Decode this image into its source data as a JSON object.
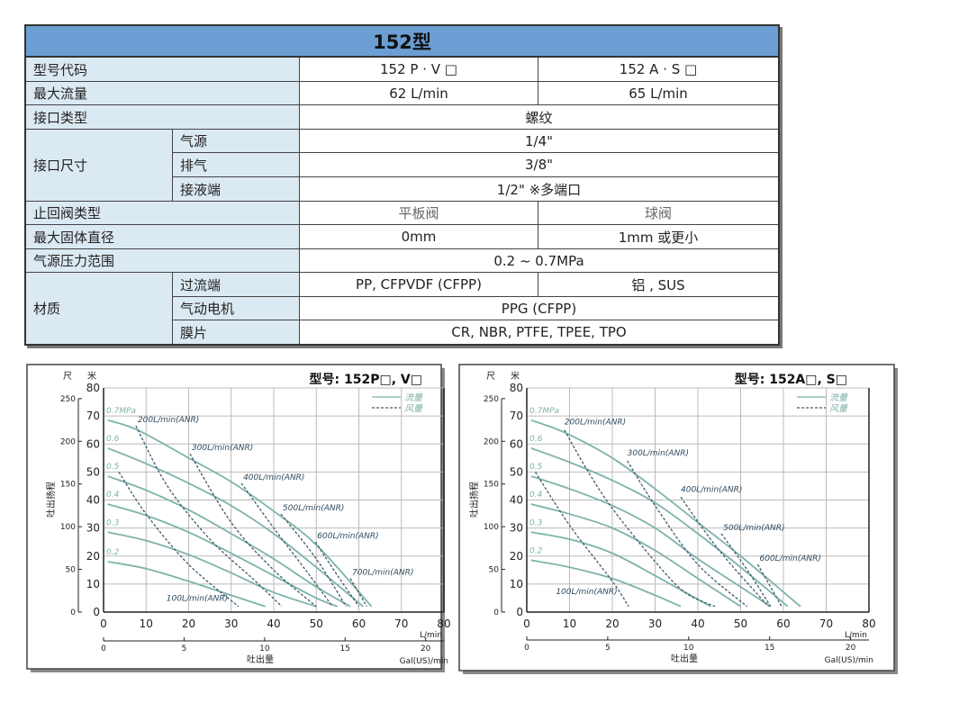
{
  "table": {
    "title": "152型",
    "rows": {
      "model_code": {
        "label": "型号代码",
        "v1": "152 P · V □",
        "v2": "152 A · S □"
      },
      "max_flow": {
        "label": "最大流量",
        "v1": "62 L/min",
        "v2": "65 L/min"
      },
      "port_type": {
        "label": "接口类型",
        "v": "螺纹"
      },
      "port_size": {
        "label": "接口尺寸",
        "air": {
          "label": "气源",
          "v": "1/4\""
        },
        "exhaust": {
          "label": "排气",
          "v": "3/8\""
        },
        "liquid": {
          "label": "接液端",
          "v": "1/2\" ※多端口"
        }
      },
      "check_valve": {
        "label": "止回阀类型",
        "v1": "平板阀",
        "v2": "球阀"
      },
      "max_solid": {
        "label": "最大固体直径",
        "v1": "0mm",
        "v2": "1mm 或更小"
      },
      "air_pressure": {
        "label": "气源压力范围",
        "v": "0.2 ~ 0.7MPa"
      },
      "material": {
        "label": "材质",
        "wetted": {
          "label": "过流端",
          "v1": "PP, CFPVDF (CFPP)",
          "v2": "铝 , SUS"
        },
        "motor": {
          "label": "气动电机",
          "v": "PPG (CFPP)"
        },
        "diaphragm": {
          "label": "膜片",
          "v": "CR, NBR, PTFE, TPEE, TPO"
        }
      }
    }
  },
  "chart_data": [
    {
      "type": "line",
      "title": "型号: 152P□, V□",
      "ylabel": "吐出扬程",
      "y_units": [
        "尺",
        "米"
      ],
      "xlabel": "吐出量",
      "x_unit": "L/min",
      "x2_unit": "Gal(US)/min",
      "xlim": [
        0,
        80
      ],
      "ylim": [
        0,
        80
      ],
      "xticks": [
        0,
        10,
        20,
        30,
        40,
        50,
        60,
        70,
        80
      ],
      "yticks": [
        0,
        10,
        20,
        30,
        40,
        50,
        60,
        70,
        80
      ],
      "y2ticks_ft": [
        0,
        50,
        100,
        150,
        200,
        250
      ],
      "x2ticks_gal": [
        0,
        5,
        10,
        15,
        20
      ],
      "grid": true,
      "legend": {
        "position": "top-right",
        "solid": "流量",
        "dashed": "风量"
      },
      "colors": {
        "flow": "#7db3a8",
        "air": "#3d5a70"
      },
      "pressure_series": [
        {
          "name": "0.2",
          "points": [
            [
              1,
              18
            ],
            [
              10,
              15.5
            ],
            [
              20,
              11
            ],
            [
              30,
              6
            ],
            [
              38,
              2
            ]
          ]
        },
        {
          "name": "0.3",
          "points": [
            [
              1,
              28.5
            ],
            [
              10,
              25.5
            ],
            [
              20,
              20.5
            ],
            [
              30,
              14
            ],
            [
              40,
              7
            ],
            [
              50,
              2
            ]
          ]
        },
        {
          "name": "0.4",
          "points": [
            [
              1,
              38.5
            ],
            [
              10,
              34.5
            ],
            [
              20,
              28.5
            ],
            [
              30,
              21
            ],
            [
              40,
              13
            ],
            [
              50,
              5
            ],
            [
              55,
              2
            ]
          ]
        },
        {
          "name": "0.5",
          "points": [
            [
              1,
              48.5
            ],
            [
              10,
              43.5
            ],
            [
              20,
              36.5
            ],
            [
              30,
              28
            ],
            [
              40,
              19
            ],
            [
              50,
              9
            ],
            [
              58,
              2
            ]
          ]
        },
        {
          "name": "0.6",
          "points": [
            [
              1,
              58.5
            ],
            [
              10,
              53
            ],
            [
              20,
              46
            ],
            [
              30,
              38
            ],
            [
              40,
              28
            ],
            [
              50,
              16
            ],
            [
              61,
              2
            ]
          ]
        },
        {
          "name": "0.7MPa",
          "points": [
            [
              1,
              68.5
            ],
            [
              8,
              65
            ],
            [
              20,
              55
            ],
            [
              30,
              46.5
            ],
            [
              40,
              36
            ],
            [
              50,
              24
            ],
            [
              63,
              2
            ]
          ]
        }
      ],
      "air_series": [
        {
          "name": "100L/min(ANR)",
          "points": [
            [
              3.6,
              50
            ],
            [
              10,
              35
            ],
            [
              20,
              17
            ],
            [
              31.7,
              2
            ]
          ]
        },
        {
          "name": "200L/min(ANR)",
          "points": [
            [
              7.6,
              66.5
            ],
            [
              15,
              45
            ],
            [
              25,
              26
            ],
            [
              35,
              12
            ],
            [
              41.9,
              2
            ]
          ]
        },
        {
          "name": "300L/min(ANR)",
          "points": [
            [
              20.3,
              56.5
            ],
            [
              30,
              32
            ],
            [
              40,
              15
            ],
            [
              50,
              2
            ]
          ]
        },
        {
          "name": "400L/min(ANR)",
          "points": [
            [
              32.4,
              46
            ],
            [
              40,
              30
            ],
            [
              48,
              14
            ],
            [
              53.8,
              2
            ]
          ]
        },
        {
          "name": "500L/min(ANR)",
          "points": [
            [
              41.7,
              35
            ],
            [
              50,
              19
            ],
            [
              57,
              2
            ]
          ]
        },
        {
          "name": "600L/min(ANR)",
          "points": [
            [
              49.8,
              25
            ],
            [
              55,
              13
            ],
            [
              60,
              2
            ]
          ]
        },
        {
          "name": "700L/min(ANR)",
          "points": [
            [
              58,
              12
            ],
            [
              61.9,
              2
            ]
          ]
        }
      ]
    },
    {
      "type": "line",
      "title": "型号: 152A□, S□",
      "ylabel": "吐出扬程",
      "y_units": [
        "尺",
        "米"
      ],
      "xlabel": "吐出量",
      "x_unit": "L/min",
      "x2_unit": "Gal(US)/min",
      "xlim": [
        0,
        80
      ],
      "ylim": [
        0,
        80
      ],
      "xticks": [
        0,
        10,
        20,
        30,
        40,
        50,
        60,
        70,
        80
      ],
      "yticks": [
        0,
        10,
        20,
        30,
        40,
        50,
        60,
        70,
        80
      ],
      "y2ticks_ft": [
        0,
        50,
        100,
        150,
        200,
        250
      ],
      "x2ticks_gal": [
        0,
        5,
        10,
        15,
        20
      ],
      "grid": true,
      "legend": {
        "position": "top-right",
        "solid": "流量",
        "dashed": "风量"
      },
      "colors": {
        "flow": "#7db3a8",
        "air": "#3d5a70"
      },
      "pressure_series": [
        {
          "name": "0.2",
          "points": [
            [
              1,
              18.5
            ],
            [
              10,
              16
            ],
            [
              20,
              12
            ],
            [
              30,
              6
            ],
            [
              36,
              2
            ]
          ]
        },
        {
          "name": "0.3",
          "points": [
            [
              1,
              28.5
            ],
            [
              10,
              26
            ],
            [
              20,
              21
            ],
            [
              30,
              13
            ],
            [
              43,
              2
            ]
          ]
        },
        {
          "name": "0.4",
          "points": [
            [
              1,
              38.5
            ],
            [
              10,
              35
            ],
            [
              20,
              30
            ],
            [
              30,
              22
            ],
            [
              40,
              12
            ],
            [
              50,
              2
            ]
          ]
        },
        {
          "name": "0.5",
          "points": [
            [
              1,
              48.5
            ],
            [
              10,
              44
            ],
            [
              20,
              38
            ],
            [
              30,
              30
            ],
            [
              40,
              19
            ],
            [
              50,
              9
            ],
            [
              57,
              2
            ]
          ]
        },
        {
          "name": "0.6",
          "points": [
            [
              1,
              58.5
            ],
            [
              10,
              53.5
            ],
            [
              20,
              47
            ],
            [
              30,
              39
            ],
            [
              40,
              28
            ],
            [
              50,
              16
            ],
            [
              61,
              2
            ]
          ]
        },
        {
          "name": "0.7MPa",
          "points": [
            [
              1,
              68.5
            ],
            [
              9,
              64
            ],
            [
              20,
              55
            ],
            [
              30,
              44
            ],
            [
              40,
              32
            ],
            [
              50,
              20
            ],
            [
              64,
              2
            ]
          ]
        }
      ],
      "air_series": [
        {
          "name": "100L/min(ANR)",
          "points": [
            [
              2,
              50
            ],
            [
              10,
              31
            ],
            [
              20,
              11
            ],
            [
              23.8,
              2
            ]
          ]
        },
        {
          "name": "200L/min(ANR)",
          "points": [
            [
              8.8,
              65
            ],
            [
              14,
              51
            ],
            [
              20,
              37
            ],
            [
              30,
              18
            ],
            [
              37,
              7
            ],
            [
              44,
              2
            ]
          ]
        },
        {
          "name": "300L/min(ANR)",
          "points": [
            [
              23.5,
              54
            ],
            [
              30,
              38
            ],
            [
              40,
              17
            ],
            [
              51.5,
              2
            ]
          ]
        },
        {
          "name": "400L/min(ANR)",
          "points": [
            [
              36,
              41
            ],
            [
              45,
              22
            ],
            [
              56.5,
              2
            ]
          ]
        },
        {
          "name": "500L/min(ANR)",
          "points": [
            [
              45.5,
              28
            ],
            [
              52,
              14
            ],
            [
              57,
              2
            ]
          ]
        },
        {
          "name": "600L/min(ANR)",
          "points": [
            [
              54,
              17
            ],
            [
              59.6,
              2
            ]
          ]
        }
      ]
    }
  ]
}
